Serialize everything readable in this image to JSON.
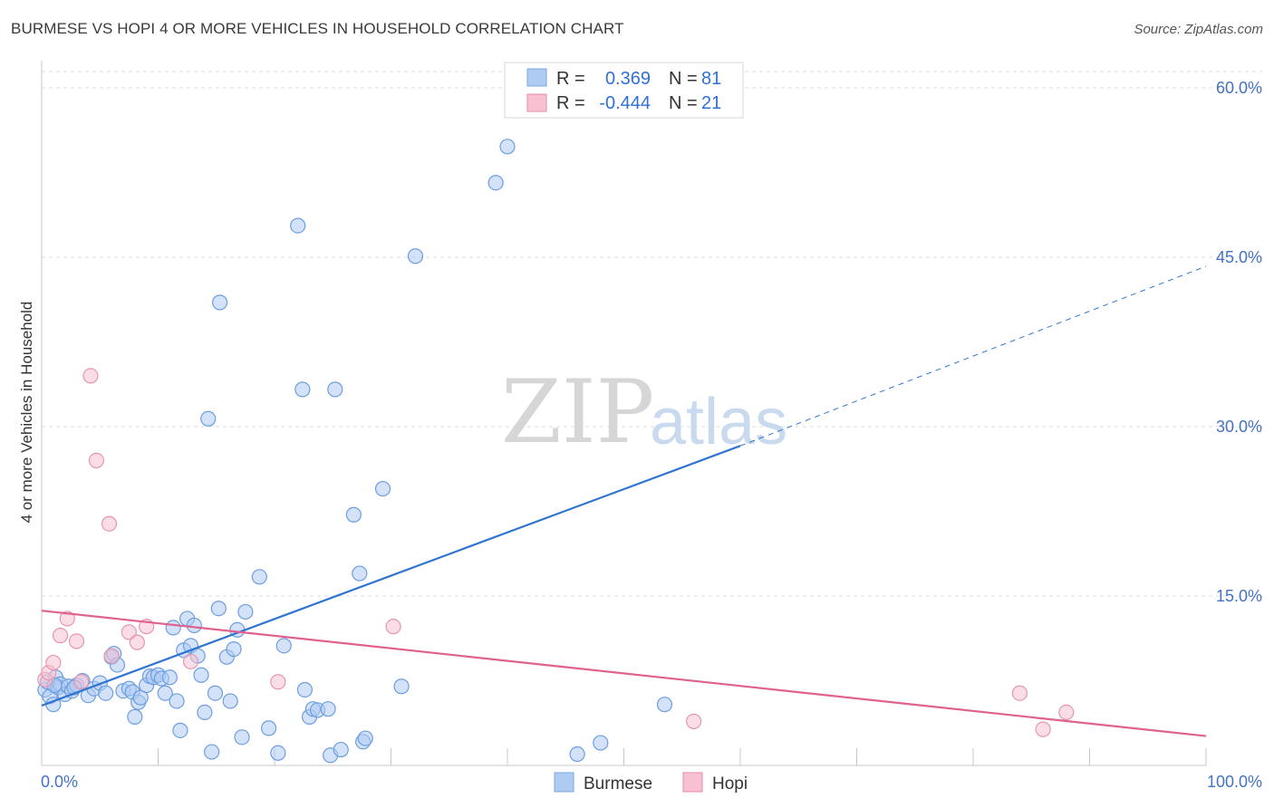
{
  "title": "BURMESE VS HOPI 4 OR MORE VEHICLES IN HOUSEHOLD CORRELATION CHART",
  "source": "Source: ZipAtlas.com",
  "watermark": {
    "zip": "ZIP",
    "atlas": "atlas"
  },
  "legend": {
    "rows": [
      {
        "r_label": "R =",
        "r_value": "0.369",
        "n_label": "N =",
        "n_value": "81",
        "color": "#aecbf2",
        "stroke": "#7ba7e0"
      },
      {
        "r_label": "R =",
        "r_value": "-0.444",
        "n_label": "N =",
        "n_value": "21",
        "color": "#f7c1d1",
        "stroke": "#e48aa8"
      }
    ]
  },
  "bottom_legend": [
    {
      "label": "Burmese",
      "color": "#aecbf2",
      "stroke": "#7ba7e0"
    },
    {
      "label": "Hopi",
      "color": "#f7c1d1",
      "stroke": "#e48aa8"
    }
  ],
  "colors": {
    "burmese_line": "#2f74d0",
    "hopi_line": "#e0608e",
    "burmese_fill": "#aecbf2",
    "hopi_fill": "#f7c1d1",
    "burmese_stroke": "#6c9ee0",
    "hopi_stroke": "#e596b0",
    "tick_label": "#4472c4",
    "grid": "#dddddd"
  },
  "chart_data": {
    "type": "scatter",
    "title": "BURMESE VS HOPI 4 OR MORE VEHICLES IN HOUSEHOLD CORRELATION CHART",
    "xlabel": "",
    "ylabel": "4 or more Vehicles in Household",
    "xlim": [
      0,
      100
    ],
    "ylim": [
      0,
      60
    ],
    "x_tick_labels": [
      "0.0%",
      "100.0%"
    ],
    "y_ticks": [
      15,
      30,
      45,
      60
    ],
    "y_tick_labels": [
      "15.0%",
      "30.0%",
      "45.0%",
      "60.0%"
    ],
    "series": [
      {
        "name": "Burmese",
        "r": 0.369,
        "n": 81,
        "trend": {
          "x0": 0,
          "y0": 5.3,
          "x1": 60,
          "y1": 28.3,
          "dashed_to_x": 100,
          "dashed_to_y": 44.2
        },
        "points": [
          [
            0.3,
            6.7
          ],
          [
            0.5,
            7.4
          ],
          [
            0.7,
            6.1
          ],
          [
            1.0,
            5.4
          ],
          [
            1.2,
            7.8
          ],
          [
            1.4,
            6.9
          ],
          [
            1.6,
            7.2
          ],
          [
            2.0,
            6.3
          ],
          [
            2.3,
            7.0
          ],
          [
            2.6,
            6.6
          ],
          [
            3.0,
            7.1
          ],
          [
            3.5,
            7.5
          ],
          [
            4.0,
            6.2
          ],
          [
            4.5,
            6.8
          ],
          [
            5.0,
            7.3
          ],
          [
            5.5,
            6.4
          ],
          [
            6.0,
            9.6
          ],
          [
            6.2,
            9.9
          ],
          [
            6.5,
            8.9
          ],
          [
            7.0,
            6.6
          ],
          [
            7.5,
            6.8
          ],
          [
            7.8,
            6.5
          ],
          [
            8.0,
            4.3
          ],
          [
            8.3,
            5.6
          ],
          [
            8.5,
            6.0
          ],
          [
            9.0,
            7.1
          ],
          [
            9.3,
            7.9
          ],
          [
            9.6,
            7.8
          ],
          [
            10.0,
            8.0
          ],
          [
            10.3,
            7.7
          ],
          [
            10.6,
            6.4
          ],
          [
            11.0,
            7.8
          ],
          [
            11.3,
            12.2
          ],
          [
            11.6,
            5.7
          ],
          [
            11.9,
            3.1
          ],
          [
            12.2,
            10.2
          ],
          [
            12.5,
            13.0
          ],
          [
            12.8,
            10.6
          ],
          [
            13.1,
            12.4
          ],
          [
            13.4,
            9.7
          ],
          [
            13.7,
            8.0
          ],
          [
            14.0,
            4.7
          ],
          [
            14.3,
            30.7
          ],
          [
            14.6,
            1.2
          ],
          [
            14.9,
            6.4
          ],
          [
            15.2,
            13.9
          ],
          [
            15.3,
            41.0
          ],
          [
            15.9,
            9.6
          ],
          [
            16.2,
            5.7
          ],
          [
            16.5,
            10.3
          ],
          [
            16.8,
            12.0
          ],
          [
            17.2,
            2.5
          ],
          [
            17.5,
            13.6
          ],
          [
            18.7,
            16.7
          ],
          [
            19.5,
            3.3
          ],
          [
            20.3,
            1.1
          ],
          [
            20.8,
            10.6
          ],
          [
            22.0,
            47.8
          ],
          [
            22.4,
            33.3
          ],
          [
            22.6,
            6.7
          ],
          [
            23.0,
            4.3
          ],
          [
            23.3,
            5.0
          ],
          [
            23.7,
            4.9
          ],
          [
            24.6,
            5.0
          ],
          [
            24.8,
            0.9
          ],
          [
            25.2,
            33.3
          ],
          [
            25.7,
            1.4
          ],
          [
            26.8,
            22.2
          ],
          [
            27.3,
            17.0
          ],
          [
            27.6,
            2.1
          ],
          [
            27.8,
            2.4
          ],
          [
            29.3,
            24.5
          ],
          [
            30.9,
            7.0
          ],
          [
            32.1,
            45.1
          ],
          [
            39.0,
            51.6
          ],
          [
            40.0,
            54.8
          ],
          [
            46.0,
            1.0
          ],
          [
            48.0,
            2.0
          ],
          [
            53.5,
            5.4
          ],
          [
            1.1,
            7.1
          ],
          [
            2.8,
            6.9
          ]
        ]
      },
      {
        "name": "Hopi",
        "r": -0.444,
        "n": 21,
        "trend": {
          "x0": 0,
          "y0": 13.7,
          "x1": 100,
          "y1": 2.6
        },
        "points": [
          [
            0.3,
            7.6
          ],
          [
            0.6,
            8.2
          ],
          [
            1.0,
            9.1
          ],
          [
            1.6,
            11.5
          ],
          [
            2.2,
            13.0
          ],
          [
            3.0,
            11.0
          ],
          [
            3.4,
            7.4
          ],
          [
            4.2,
            34.5
          ],
          [
            4.7,
            27.0
          ],
          [
            5.8,
            21.4
          ],
          [
            6.0,
            9.7
          ],
          [
            7.5,
            11.8
          ],
          [
            8.2,
            10.9
          ],
          [
            9.0,
            12.3
          ],
          [
            12.8,
            9.2
          ],
          [
            20.3,
            7.4
          ],
          [
            30.2,
            12.3
          ],
          [
            56.0,
            3.9
          ],
          [
            84.0,
            6.4
          ],
          [
            86.0,
            3.2
          ],
          [
            88.0,
            4.7
          ]
        ]
      }
    ]
  }
}
